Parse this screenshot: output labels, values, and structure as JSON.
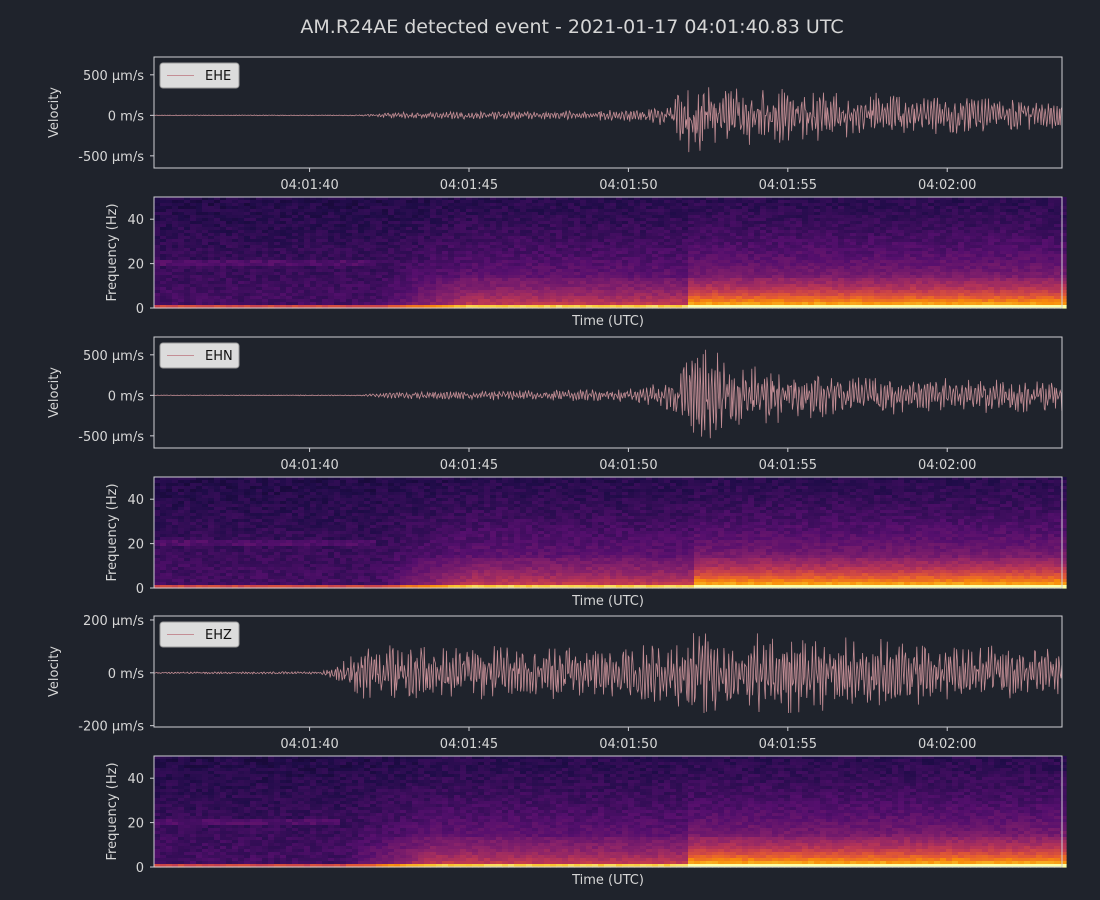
{
  "title": "AM.R24AE detected event - 2021-01-17 04:01:40.83 UTC",
  "colors": {
    "background": "#1f232c",
    "axes_frame": "#cfcfd4",
    "text": "#d6d6d6",
    "trace": "#c48e95",
    "legend_bg": "#dcdcdc",
    "legend_text": "#111111"
  },
  "chart_data": [
    {
      "type": "line",
      "channel": "EHE",
      "legend": "EHE",
      "ylabel": "Velocity",
      "y_unit": "m/s",
      "ylim": [
        -0.00065,
        0.00072
      ],
      "y_ticks": [
        {
          "value": 0.0005,
          "label": "500 µm/s"
        },
        {
          "value": 0.0,
          "label": "0 m/s"
        },
        {
          "value": -0.0005,
          "label": "-500 µm/s"
        }
      ],
      "xlim": [
        "04:01:35.12",
        "04:02:03.60"
      ],
      "x_ticks": [
        "04:01:40",
        "04:01:45",
        "04:01:50",
        "04:01:55",
        "04:02:00"
      ],
      "x_tick_seconds": [
        40,
        45,
        50,
        55,
        60
      ],
      "legend_position": "top-left",
      "envelope": [
        {
          "t": 35.1,
          "amp": 4e-06
        },
        {
          "t": 41.6,
          "amp": 6e-06
        },
        {
          "t": 42.5,
          "amp": 4e-05
        },
        {
          "t": 47.0,
          "amp": 6e-05
        },
        {
          "t": 50.5,
          "amp": 8e-05
        },
        {
          "t": 51.3,
          "amp": 0.00018
        },
        {
          "t": 51.9,
          "amp": 0.00068
        },
        {
          "t": 53.0,
          "amp": 0.00042
        },
        {
          "t": 56.0,
          "amp": 0.00032
        },
        {
          "t": 60.0,
          "amp": 0.00026
        },
        {
          "t": 63.6,
          "amp": 0.00016
        }
      ]
    },
    {
      "type": "heatmap",
      "channel": "EHE",
      "ylabel": "Frequency (Hz)",
      "xlabel": "Time (UTC)",
      "ylim": [
        0,
        50
      ],
      "y_ticks": [
        0,
        20,
        40
      ],
      "colormap": "inferno",
      "onset_seconds": 42.0,
      "s_arrival_seconds": 51.8
    },
    {
      "type": "line",
      "channel": "EHN",
      "legend": "EHN",
      "ylabel": "Velocity",
      "y_unit": "m/s",
      "ylim": [
        -0.00065,
        0.00072
      ],
      "y_ticks": [
        {
          "value": 0.0005,
          "label": "500 µm/s"
        },
        {
          "value": 0.0,
          "label": "0 m/s"
        },
        {
          "value": -0.0005,
          "label": "-500 µm/s"
        }
      ],
      "xlim": [
        "04:01:35.12",
        "04:02:03.60"
      ],
      "x_ticks": [
        "04:01:40",
        "04:01:45",
        "04:01:50",
        "04:01:55",
        "04:02:00"
      ],
      "x_tick_seconds": [
        40,
        45,
        50,
        55,
        60
      ],
      "legend_position": "top-left",
      "envelope": [
        {
          "t": 35.1,
          "amp": 4e-06
        },
        {
          "t": 41.6,
          "amp": 6e-06
        },
        {
          "t": 42.5,
          "amp": 4e-05
        },
        {
          "t": 47.0,
          "amp": 7e-05
        },
        {
          "t": 50.5,
          "amp": 0.0001
        },
        {
          "t": 51.5,
          "amp": 0.00025
        },
        {
          "t": 52.2,
          "amp": 0.00066
        },
        {
          "t": 53.5,
          "amp": 0.0004
        },
        {
          "t": 56.0,
          "amp": 0.00028
        },
        {
          "t": 60.0,
          "amp": 0.00022
        },
        {
          "t": 63.6,
          "amp": 0.00022
        }
      ]
    },
    {
      "type": "heatmap",
      "channel": "EHN",
      "ylabel": "Frequency (Hz)",
      "xlabel": "Time (UTC)",
      "ylim": [
        0,
        50
      ],
      "y_ticks": [
        0,
        20,
        40
      ],
      "colormap": "inferno",
      "onset_seconds": 42.0,
      "s_arrival_seconds": 51.9
    },
    {
      "type": "line",
      "channel": "EHZ",
      "legend": "EHZ",
      "ylabel": "Velocity",
      "y_unit": "m/s",
      "ylim": [
        -0.000205,
        0.000215
      ],
      "y_ticks": [
        {
          "value": 0.0002,
          "label": "200 µm/s"
        },
        {
          "value": 0.0,
          "label": "0 m/s"
        },
        {
          "value": -0.0002,
          "label": "-200 µm/s"
        }
      ],
      "xlim": [
        "04:01:35.12",
        "04:02:03.60"
      ],
      "x_ticks": [
        "04:01:40",
        "04:01:45",
        "04:01:50",
        "04:01:55",
        "04:02:00"
      ],
      "x_tick_seconds": [
        40,
        45,
        50,
        55,
        60
      ],
      "legend_position": "top-left",
      "envelope": [
        {
          "t": 35.1,
          "amp": 3e-06
        },
        {
          "t": 40.3,
          "amp": 5e-06
        },
        {
          "t": 41.0,
          "amp": 4e-05
        },
        {
          "t": 41.8,
          "amp": 0.00012
        },
        {
          "t": 43.0,
          "amp": 0.00011
        },
        {
          "t": 47.0,
          "amp": 0.0001
        },
        {
          "t": 51.0,
          "amp": 0.00012
        },
        {
          "t": 52.5,
          "amp": 0.00017
        },
        {
          "t": 55.0,
          "amp": 0.00016
        },
        {
          "t": 58.0,
          "amp": 0.00013
        },
        {
          "t": 63.6,
          "amp": 9e-05
        }
      ]
    },
    {
      "type": "heatmap",
      "channel": "EHZ",
      "ylabel": "Frequency (Hz)",
      "xlabel": "Time (UTC)",
      "ylim": [
        0,
        50
      ],
      "y_ticks": [
        0,
        20,
        40
      ],
      "colormap": "inferno",
      "onset_seconds": 40.9,
      "s_arrival_seconds": 51.8
    }
  ]
}
